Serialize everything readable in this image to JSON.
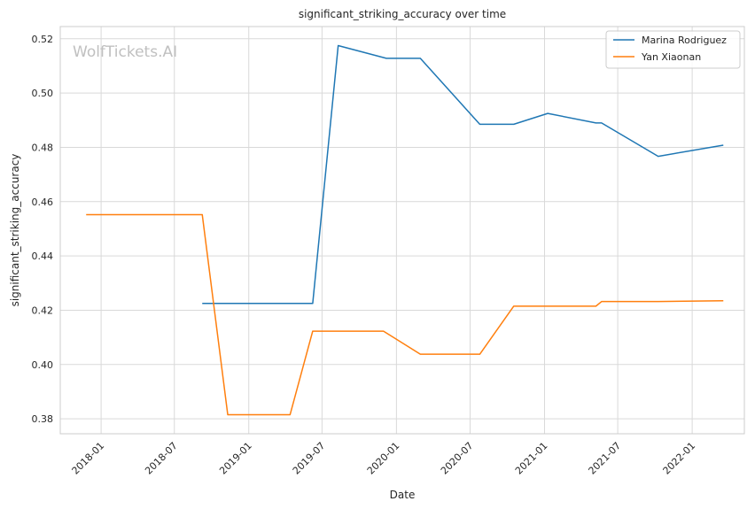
{
  "chart_data": {
    "type": "line",
    "title": "significant_striking_accuracy over time",
    "xlabel": "Date",
    "ylabel": "significant_striking_accuracy",
    "watermark": "WolfTickets.AI",
    "x_range": [
      "2017-09-22",
      "2022-05-10"
    ],
    "ylim": [
      0.3745,
      0.5245
    ],
    "x_ticks": [
      "2018-01",
      "2018-07",
      "2019-01",
      "2019-07",
      "2020-01",
      "2020-07",
      "2021-01",
      "2021-07",
      "2022-01"
    ],
    "y_ticks": [
      0.38,
      0.4,
      0.42,
      0.44,
      0.46,
      0.48,
      0.5,
      0.52
    ],
    "y_tick_labels": [
      "0.38",
      "0.40",
      "0.42",
      "0.44",
      "0.46",
      "0.48",
      "0.50",
      "0.52"
    ],
    "grid": true,
    "legend_position": "top-right",
    "series": [
      {
        "name": "Marina Rodriguez",
        "color": "#1f77b4",
        "points": [
          [
            "2018-09-08",
            0.4225
          ],
          [
            "2019-06-08",
            0.4225
          ],
          [
            "2019-08-10",
            0.5175
          ],
          [
            "2019-12-07",
            0.5128
          ],
          [
            "2020-02-29",
            0.5128
          ],
          [
            "2020-07-25",
            0.4885
          ],
          [
            "2020-10-17",
            0.4885
          ],
          [
            "2021-01-09",
            0.4925
          ],
          [
            "2021-05-08",
            0.489
          ],
          [
            "2021-05-22",
            0.489
          ],
          [
            "2021-10-09",
            0.4767
          ],
          [
            "2022-03-19",
            0.4808
          ]
        ]
      },
      {
        "name": "Yan Xiaonan",
        "color": "#ff7f0e",
        "points": [
          [
            "2017-11-25",
            0.4552
          ],
          [
            "2018-09-08",
            0.4552
          ],
          [
            "2018-11-10",
            0.3815
          ],
          [
            "2019-04-13",
            0.3815
          ],
          [
            "2019-06-08",
            0.4123
          ],
          [
            "2019-11-30",
            0.4123
          ],
          [
            "2020-02-29",
            0.4038
          ],
          [
            "2020-07-25",
            0.4038
          ],
          [
            "2020-10-17",
            0.4215
          ],
          [
            "2021-05-08",
            0.4215
          ],
          [
            "2021-05-22",
            0.4232
          ],
          [
            "2021-10-09",
            0.4232
          ],
          [
            "2022-03-19",
            0.4235
          ]
        ]
      }
    ]
  }
}
